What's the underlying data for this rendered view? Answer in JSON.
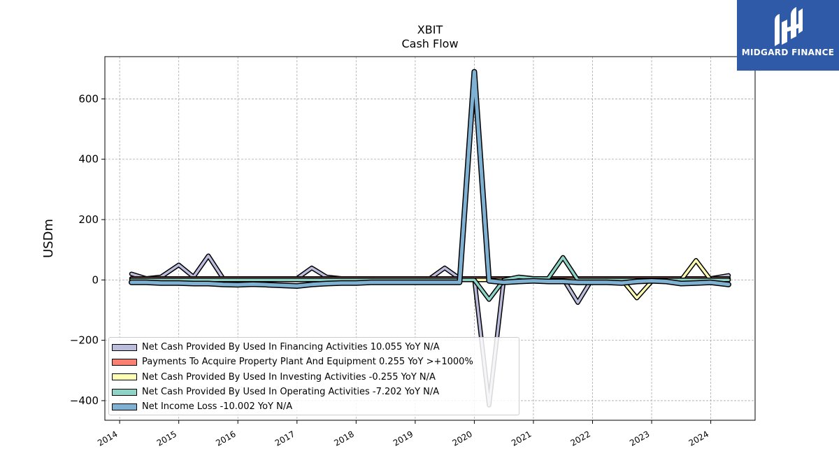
{
  "logo": {
    "text": "MIDGARD FINANCE",
    "icon": "midgard-logo-icon",
    "bg_color": "#2f5aa8"
  },
  "chart_data": {
    "type": "line",
    "title": "XBIT",
    "subtitle": "Cash Flow",
    "ylabel": "USDm",
    "xlabel": "",
    "xlim": [
      2013.75,
      2024.75
    ],
    "ylim": [
      -465,
      740
    ],
    "x_ticks": [
      "2014",
      "2015",
      "2016",
      "2017",
      "2018",
      "2019",
      "2020",
      "2021",
      "2022",
      "2023",
      "2024"
    ],
    "y_ticks": [
      600,
      400,
      200,
      0,
      -200,
      -400
    ],
    "y_tick_labels": [
      "600",
      "400",
      "200",
      "0",
      "−200",
      "−400"
    ],
    "grid": true,
    "legend_position": "lower-left",
    "x": [
      2014.2,
      2014.45,
      2014.7,
      2015.0,
      2015.25,
      2015.5,
      2015.75,
      2016.0,
      2016.25,
      2016.5,
      2016.75,
      2017.0,
      2017.25,
      2017.5,
      2017.75,
      2018.0,
      2018.25,
      2018.5,
      2018.75,
      2019.0,
      2019.25,
      2019.5,
      2019.75,
      2020.0,
      2020.25,
      2020.5,
      2020.75,
      2021.0,
      2021.25,
      2021.5,
      2021.75,
      2022.0,
      2022.25,
      2022.5,
      2022.75,
      2023.0,
      2023.25,
      2023.5,
      2023.75,
      2024.0,
      2024.3
    ],
    "series": [
      {
        "name": "Net Cash Provided By Used In Financing Activities  10.055 YoY N/A",
        "color": "#bcbddc",
        "values": [
          20,
          5,
          10,
          50,
          10,
          80,
          5,
          5,
          5,
          5,
          5,
          5,
          40,
          10,
          5,
          5,
          5,
          5,
          5,
          5,
          5,
          40,
          5,
          5,
          -415,
          5,
          5,
          5,
          5,
          5,
          -75,
          5,
          5,
          5,
          5,
          5,
          5,
          5,
          5,
          5,
          15
        ]
      },
      {
        "name": "Payments To Acquire Property Plant And Equipment  0.255 YoY >+1000%",
        "color": "#fb8072",
        "values": [
          5,
          5,
          5,
          5,
          5,
          5,
          5,
          5,
          5,
          5,
          5,
          5,
          5,
          5,
          5,
          5,
          5,
          5,
          5,
          5,
          5,
          5,
          5,
          5,
          5,
          5,
          5,
          5,
          5,
          5,
          5,
          5,
          5,
          5,
          5,
          5,
          5,
          5,
          5,
          5,
          5
        ]
      },
      {
        "name": "Net Cash Provided By Used In Investing Activities  -0.255 YoY N/A",
        "color": "#ffffb3",
        "values": [
          0,
          0,
          0,
          0,
          0,
          0,
          0,
          0,
          0,
          0,
          0,
          0,
          0,
          0,
          0,
          0,
          0,
          0,
          0,
          0,
          0,
          0,
          0,
          0,
          0,
          0,
          0,
          0,
          0,
          0,
          0,
          0,
          0,
          0,
          -60,
          -5,
          0,
          0,
          65,
          0,
          0
        ]
      },
      {
        "name": "Net Cash Provided By Used In Operating Activities  -7.202 YoY N/A",
        "color": "#8dd3c7",
        "values": [
          0,
          0,
          0,
          0,
          0,
          0,
          0,
          0,
          0,
          0,
          0,
          0,
          0,
          0,
          0,
          0,
          0,
          0,
          0,
          0,
          0,
          0,
          0,
          0,
          -65,
          0,
          10,
          5,
          5,
          75,
          0,
          0,
          0,
          0,
          0,
          0,
          0,
          0,
          0,
          0,
          0
        ]
      },
      {
        "name": "Net Income Loss  -10.002 YoY N/A",
        "color": "#7fb1d3",
        "values": [
          -8,
          -8,
          -10,
          -10,
          -12,
          -12,
          -15,
          -16,
          -14,
          -16,
          -18,
          -20,
          -15,
          -12,
          -10,
          -10,
          -8,
          -8,
          -8,
          -8,
          -8,
          -8,
          -8,
          690,
          -3,
          -8,
          -5,
          -3,
          -5,
          -5,
          -8,
          -8,
          -8,
          -10,
          -5,
          -3,
          -5,
          -12,
          -10,
          -8,
          -15
        ]
      }
    ]
  }
}
